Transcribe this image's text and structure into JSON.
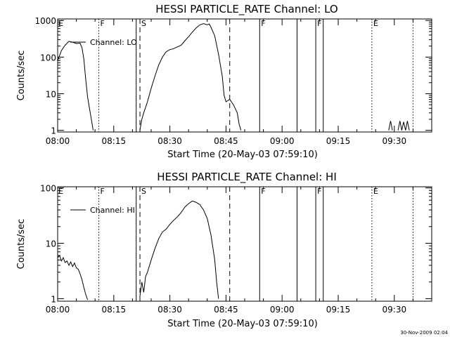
{
  "footer": {
    "date_stamp": "30-Nov-2009 02:04"
  },
  "chart_data": [
    {
      "type": "line",
      "title": "HESSI PARTICLE_RATE Channel: LO",
      "xlabel": "Start Time (20-May-03 07:59:10)",
      "ylabel": "Counts/sec",
      "yscale": "log",
      "ylim": [
        0.9,
        1100
      ],
      "xlim": [
        "08:00",
        "09:40"
      ],
      "xticks": [
        "08:00",
        "08:15",
        "08:30",
        "08:45",
        "09:00",
        "09:15",
        "09:30"
      ],
      "yticks": [
        "1",
        "10",
        "100",
        "1000"
      ],
      "legend": {
        "label": "Channel: LO",
        "placement": "top-left"
      },
      "series": [
        {
          "name": "Channel: LO",
          "segments": [
            [
              [
                "08:00",
                80
              ],
              [
                "08:01",
                150
              ],
              [
                "08:02",
                210
              ],
              [
                "08:03",
                270
              ],
              [
                "08:04",
                255
              ],
              [
                "08:05",
                235
              ],
              [
                "08:06",
                240
              ],
              [
                "08:06:30",
                180
              ],
              [
                "08:07",
                90
              ],
              [
                "08:07:30",
                25
              ],
              [
                "08:08",
                8
              ],
              [
                "08:09",
                2
              ],
              [
                "08:09:30",
                1
              ]
            ],
            [
              [
                "08:22",
                1
              ],
              [
                "08:22:30",
                2
              ],
              [
                "08:23",
                3
              ],
              [
                "08:24",
                6
              ],
              [
                "08:25",
                14
              ],
              [
                "08:26",
                30
              ],
              [
                "08:27",
                60
              ],
              [
                "08:28",
                100
              ],
              [
                "08:29",
                140
              ],
              [
                "08:30",
                160
              ],
              [
                "08:31",
                170
              ],
              [
                "08:32",
                190
              ],
              [
                "08:33",
                210
              ],
              [
                "08:34",
                280
              ],
              [
                "08:35",
                360
              ],
              [
                "08:36",
                480
              ],
              [
                "08:37",
                620
              ],
              [
                "08:38",
                760
              ],
              [
                "08:39",
                820
              ],
              [
                "08:40",
                760
              ],
              [
                "08:40:30",
                800
              ],
              [
                "08:41",
                650
              ],
              [
                "08:42",
                380
              ],
              [
                "08:43",
                120
              ],
              [
                "08:44",
                30
              ],
              [
                "08:44:30",
                9
              ],
              [
                "08:45",
                6
              ],
              [
                "08:46",
                7
              ],
              [
                "08:47",
                5
              ],
              [
                "08:48",
                3
              ],
              [
                "08:48:30",
                1.5
              ],
              [
                "08:49",
                1
              ]
            ],
            [
              [
                "09:28:30",
                1
              ],
              [
                "09:29",
                1.8
              ],
              [
                "09:29:30",
                1
              ]
            ],
            [
              [
                "09:31",
                1
              ],
              [
                "09:31:30",
                1.8
              ],
              [
                "09:32",
                1
              ],
              [
                "09:32:30",
                1.7
              ],
              [
                "09:33",
                1
              ],
              [
                "09:33:30",
                1.8
              ],
              [
                "09:34",
                1
              ]
            ]
          ]
        }
      ],
      "events": [
        {
          "time": "08:11",
          "label": "F",
          "style": "dotted"
        },
        {
          "time": "08:21",
          "label": "",
          "style": "solid"
        },
        {
          "time": "08:22",
          "label": "S",
          "style": "dashed"
        },
        {
          "time": "08:46",
          "label": "",
          "style": "dashed"
        },
        {
          "time": "08:54",
          "label": "F",
          "style": "solid"
        },
        {
          "time": "09:04",
          "label": "",
          "style": "solid"
        },
        {
          "time": "09:09",
          "label": "F",
          "style": "solid"
        },
        {
          "time": "09:11",
          "label": "",
          "style": "solid"
        },
        {
          "time": "09:24",
          "label": "E",
          "style": "dotted"
        },
        {
          "time": "09:35",
          "label": "",
          "style": "dotted"
        }
      ],
      "start_flag": "E"
    },
    {
      "type": "line",
      "title": "HESSI PARTICLE_RATE Channel: HI",
      "xlabel": "Start Time (20-May-03 07:59:10)",
      "ylabel": "Counts/sec",
      "yscale": "log",
      "ylim": [
        0.9,
        105
      ],
      "xlim": [
        "08:00",
        "09:40"
      ],
      "xticks": [
        "08:00",
        "08:15",
        "08:30",
        "08:45",
        "09:00",
        "09:15",
        "09:30"
      ],
      "yticks": [
        "1",
        "10",
        "100"
      ],
      "legend": {
        "label": "Channel: HI",
        "placement": "top-left"
      },
      "series": [
        {
          "name": "Channel: HI",
          "segments": [
            [
              [
                "08:00",
                5.5
              ],
              [
                "08:00:30",
                6
              ],
              [
                "08:01",
                4.8
              ],
              [
                "08:01:30",
                5.5
              ],
              [
                "08:02",
                4.5
              ],
              [
                "08:02:30",
                4.8
              ],
              [
                "08:03",
                4
              ],
              [
                "08:03:30",
                4.6
              ],
              [
                "08:04",
                3.8
              ],
              [
                "08:04:30",
                4.4
              ],
              [
                "08:05",
                3.6
              ],
              [
                "08:05:30",
                3.4
              ],
              [
                "08:06",
                2.8
              ],
              [
                "08:06:30",
                2.2
              ],
              [
                "08:07",
                1.6
              ],
              [
                "08:07:30",
                1.2
              ],
              [
                "08:08",
                0.95
              ]
            ],
            [
              [
                "08:22",
                1.1
              ],
              [
                "08:22:30",
                2
              ],
              [
                "08:23",
                1.3
              ],
              [
                "08:23:30",
                2.5
              ],
              [
                "08:24",
                3
              ],
              [
                "08:25",
                5
              ],
              [
                "08:26",
                8
              ],
              [
                "08:27",
                12
              ],
              [
                "08:28",
                16
              ],
              [
                "08:29",
                18
              ],
              [
                "08:30",
                22
              ],
              [
                "08:31",
                26
              ],
              [
                "08:32",
                30
              ],
              [
                "08:33",
                36
              ],
              [
                "08:34",
                45
              ],
              [
                "08:35",
                52
              ],
              [
                "08:36",
                58
              ],
              [
                "08:37",
                55
              ],
              [
                "08:38",
                50
              ],
              [
                "08:39",
                40
              ],
              [
                "08:40",
                28
              ],
              [
                "08:41",
                14
              ],
              [
                "08:42",
                5
              ],
              [
                "08:42:30",
                2
              ],
              [
                "08:43",
                1
              ]
            ]
          ]
        }
      ],
      "events": [
        {
          "time": "08:11",
          "label": "F",
          "style": "dotted"
        },
        {
          "time": "08:21",
          "label": "",
          "style": "solid"
        },
        {
          "time": "08:22",
          "label": "S",
          "style": "dashed"
        },
        {
          "time": "08:46",
          "label": "",
          "style": "dashed"
        },
        {
          "time": "08:54",
          "label": "F",
          "style": "solid"
        },
        {
          "time": "09:04",
          "label": "",
          "style": "solid"
        },
        {
          "time": "09:09",
          "label": "F",
          "style": "solid"
        },
        {
          "time": "09:11",
          "label": "",
          "style": "solid"
        },
        {
          "time": "09:24",
          "label": "E",
          "style": "dotted"
        },
        {
          "time": "09:35",
          "label": "",
          "style": "dotted"
        }
      ],
      "start_flag": "E"
    }
  ]
}
